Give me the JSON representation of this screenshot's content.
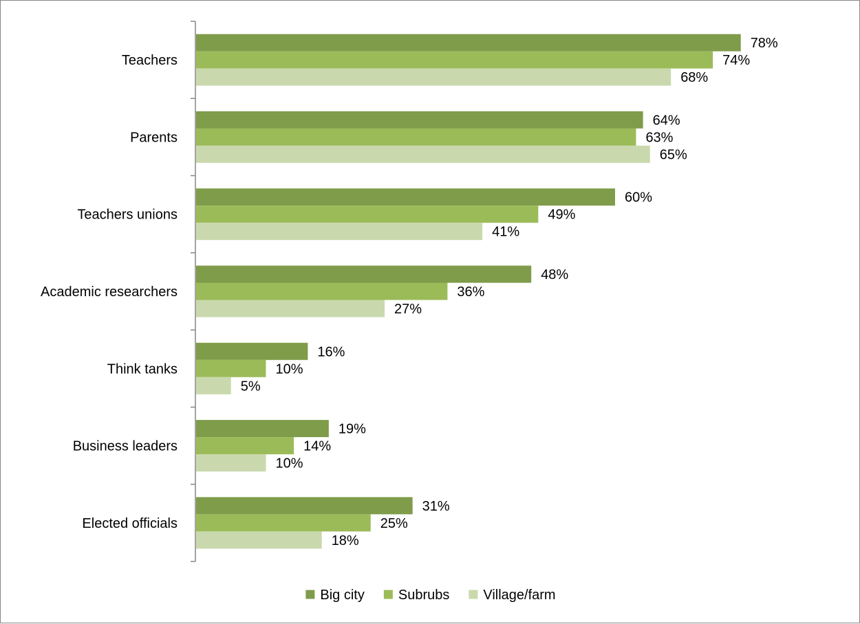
{
  "chart_data": {
    "type": "bar",
    "orientation": "horizontal",
    "categories": [
      "Teachers",
      "Parents",
      "Teachers unions",
      "Academic researchers",
      "Think tanks",
      "Business leaders",
      "Elected officials"
    ],
    "series": [
      {
        "name": "Big city",
        "color": "#7f9c4a",
        "values": [
          78,
          64,
          60,
          48,
          16,
          19,
          31
        ],
        "labels": [
          "78%",
          "64%",
          "60%",
          "48%",
          "16%",
          "19%",
          "31%"
        ]
      },
      {
        "name": "Subrubs",
        "color": "#9bbb59",
        "values": [
          74,
          63,
          49,
          36,
          10,
          14,
          25
        ],
        "labels": [
          "74%",
          "63%",
          "49%",
          "36%",
          "10%",
          "14%",
          "25%"
        ]
      },
      {
        "name": "Village/farm",
        "color": "#c9d9ad",
        "values": [
          68,
          65,
          41,
          27,
          5,
          10,
          18
        ],
        "labels": [
          "68%",
          "65%",
          "41%",
          "27%",
          "5%",
          "10%",
          "18%"
        ]
      }
    ],
    "xlim": [
      0,
      80
    ],
    "unit": "%",
    "grid": false,
    "legend_position": "bottom"
  }
}
